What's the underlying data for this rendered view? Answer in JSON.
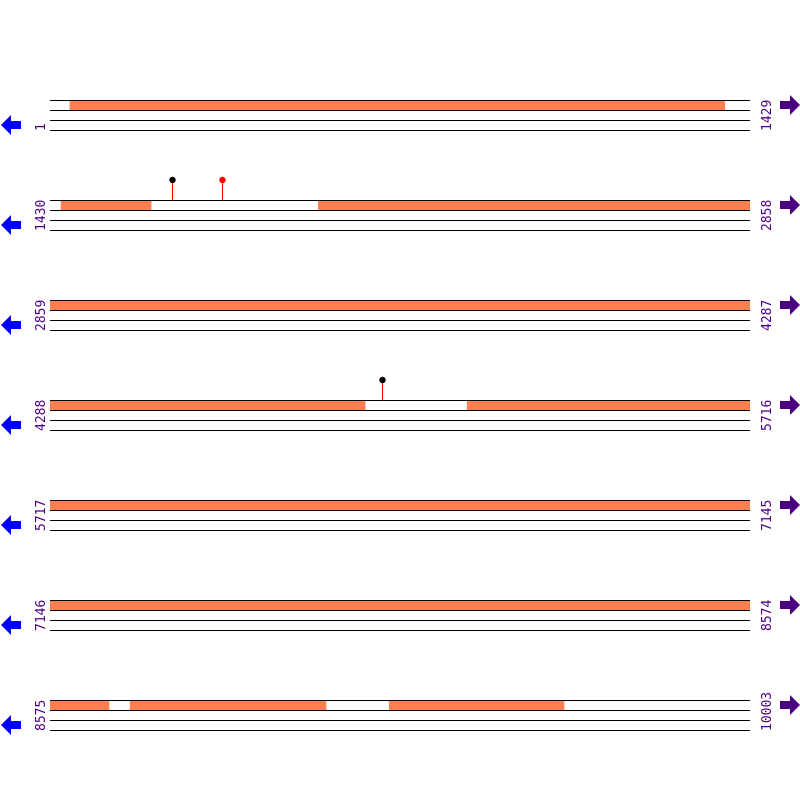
{
  "colors": {
    "feature": "#ff7f50",
    "line": "#000000",
    "left_arrow": "#0000ff",
    "right_arrow": "#4b0082",
    "label": "#4b0082",
    "stem": "#ff0000"
  },
  "icons": {
    "left": "arrow-left-icon",
    "right": "arrow-right-icon"
  },
  "rows": [
    {
      "start": "1",
      "end": "1429",
      "features": [
        [
          41,
          1378
        ]
      ],
      "markers": []
    },
    {
      "start": "1430",
      "end": "2858",
      "features": [
        [
          1452,
          1636
        ],
        [
          1977,
          2858
        ]
      ],
      "markers": [
        {
          "pos": 1679,
          "head": "#000000"
        },
        {
          "pos": 1781,
          "head": "#ff0000"
        }
      ]
    },
    {
      "start": "2859",
      "end": "4287",
      "features": [
        [
          2859,
          4287
        ]
      ],
      "markers": []
    },
    {
      "start": "4288",
      "end": "5716",
      "features": [
        [
          4288,
          4931
        ],
        [
          5139,
          5716
        ]
      ],
      "markers": [
        {
          "pos": 4966,
          "head": "#000000"
        }
      ]
    },
    {
      "start": "5717",
      "end": "7145",
      "features": [
        [
          5717,
          7145
        ]
      ],
      "markers": []
    },
    {
      "start": "7146",
      "end": "8574",
      "features": [
        [
          7146,
          8574
        ]
      ],
      "markers": []
    },
    {
      "start": "8575",
      "end": "10003",
      "features": [
        [
          8575,
          8695
        ],
        [
          8738,
          9138
        ],
        [
          9267,
          9624
        ]
      ],
      "markers": []
    }
  ]
}
